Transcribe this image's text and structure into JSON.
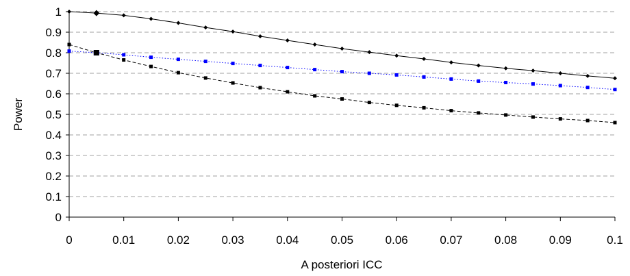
{
  "chart_data": {
    "type": "line",
    "title": "",
    "xlabel": "A posteriori ICC",
    "ylabel": "Power",
    "xlim": [
      0,
      0.1
    ],
    "ylim": [
      0,
      1
    ],
    "x_ticks": [
      "0",
      "0.01",
      "0.02",
      "0.03",
      "0.04",
      "0.05",
      "0.06",
      "0.07",
      "0.08",
      "0.09",
      "0.1"
    ],
    "y_ticks": [
      "0",
      "0.1",
      "0.2",
      "0.3",
      "0.4",
      "0.5",
      "0.6",
      "0.7",
      "0.8",
      "0.9",
      "1"
    ],
    "grid": "horizontal dashed",
    "legend": "none",
    "x": [
      0,
      0.005,
      0.01,
      0.015,
      0.02,
      0.025,
      0.03,
      0.035,
      0.04,
      0.045,
      0.05,
      0.055,
      0.06,
      0.065,
      0.07,
      0.075,
      0.08,
      0.085,
      0.09,
      0.095,
      0.1
    ],
    "series": [
      {
        "marker": "diamond",
        "line_style": "solid",
        "color": "#000000",
        "values": [
          1.0,
          0.993,
          0.982,
          0.965,
          0.945,
          0.923,
          0.903,
          0.88,
          0.86,
          0.84,
          0.82,
          0.803,
          0.786,
          0.77,
          0.753,
          0.738,
          0.724,
          0.713,
          0.7,
          0.687,
          0.676
        ]
      },
      {
        "marker": "square",
        "line_style": "dotted",
        "color": "#0000ff",
        "values": [
          0.808,
          0.8,
          0.79,
          0.778,
          0.768,
          0.758,
          0.748,
          0.738,
          0.728,
          0.718,
          0.708,
          0.7,
          0.692,
          0.682,
          0.672,
          0.662,
          0.655,
          0.648,
          0.64,
          0.631,
          0.621
        ]
      },
      {
        "marker": "square",
        "line_style": "dashed",
        "color": "#000000",
        "values": [
          0.84,
          0.8,
          0.765,
          0.733,
          0.703,
          0.677,
          0.653,
          0.63,
          0.61,
          0.59,
          0.575,
          0.558,
          0.544,
          0.532,
          0.518,
          0.507,
          0.497,
          0.487,
          0.478,
          0.47,
          0.46
        ]
      }
    ]
  }
}
